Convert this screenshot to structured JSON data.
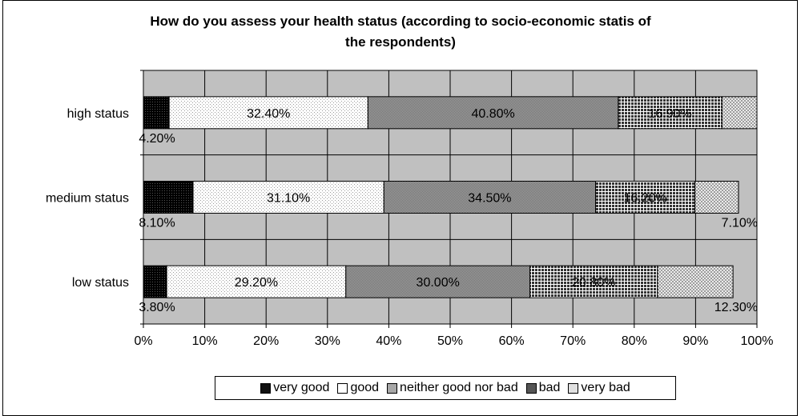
{
  "title_line1": "How do you assess your health status (according to socio-economic statis of",
  "title_line2": "the respondents)",
  "colors": {
    "plot_bg": "#c0c0c0",
    "very_good": "#111111",
    "good": "#ffffff",
    "neither": "#8c8c8c",
    "bad": "#5a5a5a",
    "very_bad": "#e8e8e8"
  },
  "chart_data": {
    "type": "bar",
    "orientation": "horizontal",
    "stacked": "100%",
    "categories": [
      "high status",
      "medium status",
      "low status"
    ],
    "series": [
      {
        "name": "very good",
        "values": [
          4.2,
          8.1,
          3.8
        ],
        "labels": [
          "4.20%",
          "8.10%",
          "3.80%"
        ]
      },
      {
        "name": "good",
        "values": [
          32.4,
          31.1,
          29.2
        ],
        "labels": [
          "32.40%",
          "31.10%",
          "29.20%"
        ]
      },
      {
        "name": "neither good nor bad",
        "values": [
          40.8,
          34.5,
          30.0
        ],
        "labels": [
          "40.80%",
          "34.50%",
          "30.00%"
        ]
      },
      {
        "name": "bad",
        "values": [
          16.9,
          16.2,
          20.8
        ],
        "labels": [
          "16.90%",
          "16.20%",
          "20.80%"
        ]
      },
      {
        "name": "very bad",
        "values": [
          5.7,
          7.1,
          12.3
        ],
        "labels": [
          "",
          "7.10%",
          "12.30%"
        ]
      }
    ],
    "x_ticks": [
      "0%",
      "10%",
      "20%",
      "30%",
      "40%",
      "50%",
      "60%",
      "70%",
      "80%",
      "90%",
      "100%"
    ],
    "xlim": [
      0,
      100
    ],
    "grid": true,
    "legend_position": "bottom"
  }
}
